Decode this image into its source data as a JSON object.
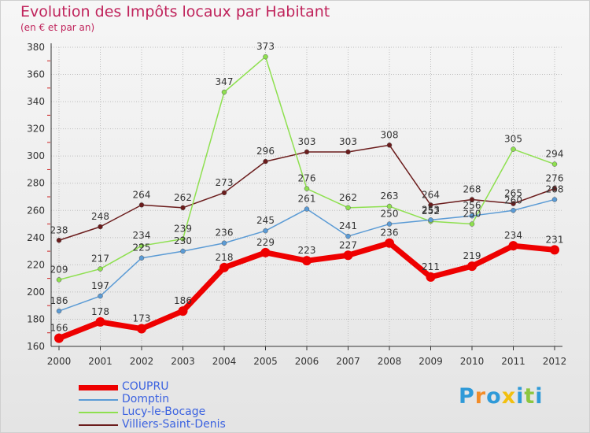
{
  "header": {
    "title": "Evolution des Impôts locaux par Habitant",
    "subtitle": "(en € et par an)"
  },
  "brand": {
    "letters": [
      "P",
      "r",
      "o",
      "x",
      "i",
      "t",
      "i"
    ],
    "colors": [
      "#2f9ad8",
      "#f28c28",
      "#2f9ad8",
      "#f2c010",
      "#2f9ad8",
      "#8dc63f",
      "#2f9ad8"
    ]
  },
  "chart_data": {
    "type": "line",
    "title": "Evolution des Impôts locaux par Habitant",
    "subtitle": "(en € et par an)",
    "xlabel": "",
    "ylabel": "",
    "x": [
      "2000",
      "2001",
      "2002",
      "2003",
      "2004",
      "2005",
      "2006",
      "2007",
      "2008",
      "2009",
      "2010",
      "2011",
      "2012"
    ],
    "ylim": [
      160,
      380
    ],
    "yticks": [
      160,
      180,
      200,
      220,
      240,
      260,
      280,
      300,
      320,
      340,
      360,
      380
    ],
    "legend_position": "bottom-left",
    "series": [
      {
        "name": "COUPRU",
        "color": "#ee0000",
        "width": 7,
        "values": [
          166,
          178,
          173,
          186,
          218,
          229,
          223,
          227,
          236,
          211,
          219,
          234,
          231
        ],
        "labels": [
          "166",
          "178",
          "173",
          "186",
          "218",
          "229",
          "223",
          "227",
          "236",
          "211",
          "219",
          "234",
          "231"
        ]
      },
      {
        "name": "Domptin",
        "color": "#5b9bd5",
        "width": 1.5,
        "values": [
          186,
          197,
          225,
          230,
          236,
          245,
          261,
          241,
          250,
          253,
          256,
          260,
          268
        ],
        "labels": [
          "186",
          "197",
          "225",
          "230",
          "236",
          "245",
          "261",
          "241",
          "250",
          "253",
          "256",
          "260",
          "268"
        ]
      },
      {
        "name": "Lucy-le-Bocage",
        "color": "#8ee04f",
        "width": 1.5,
        "values": [
          209,
          217,
          234,
          239,
          347,
          373,
          276,
          262,
          263,
          252,
          250,
          305,
          294
        ],
        "labels": [
          "209",
          "217",
          "234",
          "239",
          "347",
          "373",
          "276",
          "262",
          "263",
          "252",
          "250",
          "305",
          "294"
        ]
      },
      {
        "name": "Villiers-Saint-Denis",
        "color": "#6b1c1c",
        "width": 1.5,
        "values": [
          238,
          248,
          264,
          262,
          273,
          296,
          303,
          303,
          308,
          264,
          268,
          265,
          276
        ],
        "labels": [
          "238",
          "248",
          "264",
          "262",
          "273",
          "296",
          "303",
          "303",
          "308",
          "264",
          "268",
          "265",
          "276"
        ]
      }
    ]
  }
}
